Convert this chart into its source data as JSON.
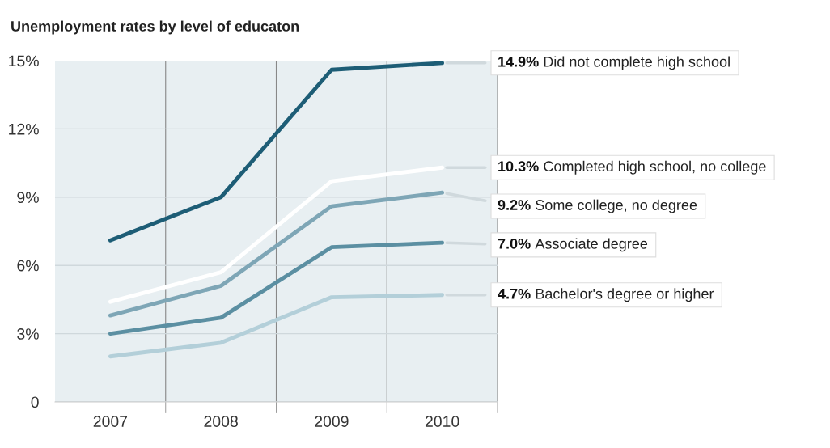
{
  "chart_data": {
    "type": "line",
    "title": "Unemployment rates by level of educaton",
    "categories": [
      "2007",
      "2008",
      "2009",
      "2010"
    ],
    "series": [
      {
        "name": "Did not complete high school",
        "color": "#1d5d76",
        "values": [
          7.1,
          9.0,
          14.6,
          14.9
        ],
        "value_labels": [
          null,
          null,
          null,
          "14.9%"
        ]
      },
      {
        "name": "Completed high school, no college",
        "color": "#ffffff",
        "values": [
          4.4,
          5.7,
          9.7,
          10.3
        ],
        "value_labels": [
          null,
          null,
          null,
          "10.3%"
        ]
      },
      {
        "name": "Some college, no degree",
        "color": "#7ea6b6",
        "values": [
          3.8,
          5.1,
          8.6,
          9.2
        ],
        "value_labels": [
          null,
          null,
          null,
          "9.2%"
        ]
      },
      {
        "name": "Associate degree",
        "color": "#5b8fa2",
        "values": [
          3.0,
          3.7,
          6.8,
          7.0
        ],
        "value_labels": [
          null,
          null,
          null,
          "7.0%"
        ]
      },
      {
        "name": "Bachelor's degree or higher",
        "color": "#b3cfd9",
        "values": [
          2.0,
          2.6,
          4.6,
          4.7
        ],
        "value_labels": [
          null,
          null,
          null,
          "4.7%"
        ]
      }
    ],
    "ylim": [
      0,
      15
    ],
    "yticks": [
      0,
      {
        "value": 3,
        "label": "3%"
      },
      {
        "value": 6,
        "label": "6%"
      },
      {
        "value": 9,
        "label": "9%"
      },
      {
        "value": 12,
        "label": "12%"
      },
      {
        "value": 15,
        "label": "15%"
      }
    ],
    "grid": true,
    "legend": "right",
    "marker": "none",
    "line_style": "solid"
  }
}
